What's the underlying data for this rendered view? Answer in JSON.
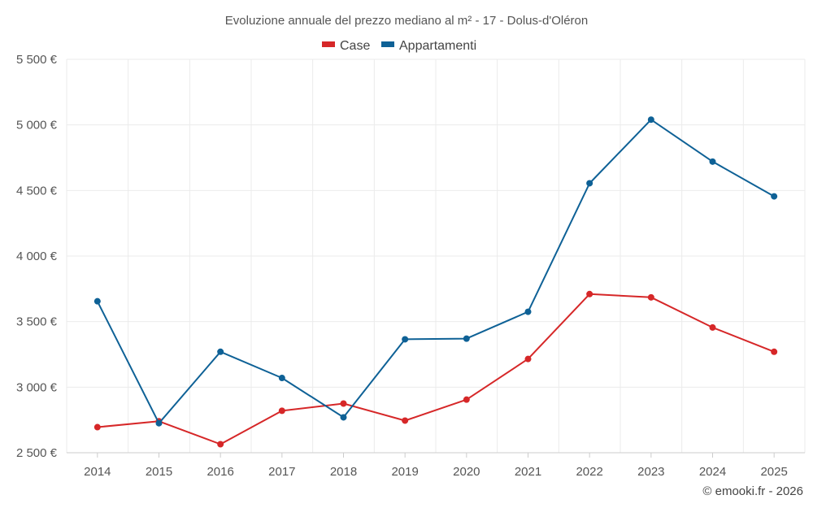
{
  "chart_data": {
    "type": "line",
    "title": "Evoluzione annuale del prezzo mediano al m² - 17 - Dolus-d'Oléron",
    "x": [
      "2014",
      "2015",
      "2016",
      "2017",
      "2018",
      "2019",
      "2020",
      "2021",
      "2022",
      "2023",
      "2024",
      "2025"
    ],
    "series": [
      {
        "name": "Case",
        "color": "#d62728",
        "values": [
          2695,
          2740,
          2565,
          2820,
          2875,
          2745,
          2905,
          3215,
          3710,
          3685,
          3455,
          3270
        ]
      },
      {
        "name": "Appartamenti",
        "color": "#0e6196",
        "values": [
          3655,
          2725,
          3270,
          3070,
          2770,
          3365,
          3370,
          3575,
          4555,
          5040,
          4720,
          4455
        ]
      }
    ],
    "yticks": [
      2500,
      3000,
      3500,
      4000,
      4500,
      5000,
      5500
    ],
    "ytick_labels": [
      "2 500 €",
      "3 000 €",
      "3 500 €",
      "4 000 €",
      "4 500 €",
      "5 000 €",
      "5 500 €"
    ],
    "ylim": [
      2500,
      5500
    ],
    "legend_position": "top-center",
    "grid": true,
    "xlabel": "",
    "ylabel": ""
  },
  "credit": "© emooki.fr - 2026"
}
